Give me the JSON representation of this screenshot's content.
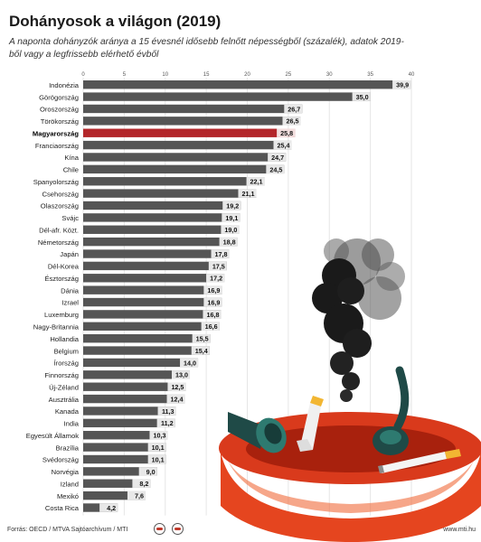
{
  "title": "Dohányosok a világon (2019)",
  "subtitle": "A naponta dohányzók aránya a 15 évesnél idősebb felnőtt népességből (százalék), adatok 2019-ből vagy a legfrissebb elérhető évből",
  "footer": {
    "source": "Forrás: OECD / MTVA Sajtóarchívum / MTI",
    "website": "www.mti.hu"
  },
  "colors": {
    "bar": "#555555",
    "highlight": "#b3262a",
    "value_label_bg": "#e8e8e8",
    "highlight_label_bg": "#f2dede",
    "grid": "#e6e6e6"
  },
  "illustration": {
    "depicts": "red ashtray with smoking cigarettes and pipes, dark smoke cloud",
    "icon": "ashtray-smoke-illustration"
  },
  "chart_data": {
    "type": "bar",
    "orientation": "horizontal",
    "title": "Dohányosok a világon (2019)",
    "xlim": [
      0,
      40
    ],
    "ticks": [
      0,
      5,
      10,
      15,
      20,
      25,
      30,
      35,
      40
    ],
    "grid": true,
    "highlight": "Magyarország",
    "categories": [
      "Indonézia",
      "Görögország",
      "Oroszország",
      "Törökország",
      "Magyarország",
      "Franciaország",
      "Kína",
      "Chile",
      "Spanyolország",
      "Csehország",
      "Olaszország",
      "Svájc",
      "Dél-afr. Közt.",
      "Németország",
      "Japán",
      "Dél-Korea",
      "Észtország",
      "Dánia",
      "Izrael",
      "Luxemburg",
      "Nagy-Britannia",
      "Hollandia",
      "Belgium",
      "Írország",
      "Finnország",
      "Új-Zéland",
      "Ausztrália",
      "Kanada",
      "India",
      "Egyesült Államok",
      "Brazília",
      "Svédország",
      "Norvégia",
      "Izland",
      "Mexikó",
      "Costa Rica"
    ],
    "values": [
      39.9,
      35.0,
      26.7,
      26.5,
      25.8,
      25.4,
      24.7,
      24.5,
      22.1,
      21.1,
      19.2,
      19.1,
      19.0,
      18.8,
      17.8,
      17.5,
      17.2,
      16.9,
      16.9,
      16.8,
      16.6,
      15.5,
      15.4,
      14.0,
      13.0,
      12.5,
      12.4,
      11.3,
      11.2,
      10.3,
      10.1,
      10.1,
      9.0,
      8.2,
      7.6,
      4.2
    ],
    "value_labels": [
      "39,9",
      "35,0",
      "26,7",
      "26,5",
      "25,8",
      "25,4",
      "24,7",
      "24,5",
      "22,1",
      "21,1",
      "19,2",
      "19,1",
      "19,0",
      "18,8",
      "17,8",
      "17,5",
      "17,2",
      "16,9",
      "16,9",
      "16,8",
      "16,6",
      "15,5",
      "15,4",
      "14,0",
      "13,0",
      "12,5",
      "12,4",
      "11,3",
      "11,2",
      "10,3",
      "10,1",
      "10,1",
      "9,0",
      "8,2",
      "7,6",
      "4,2"
    ]
  }
}
